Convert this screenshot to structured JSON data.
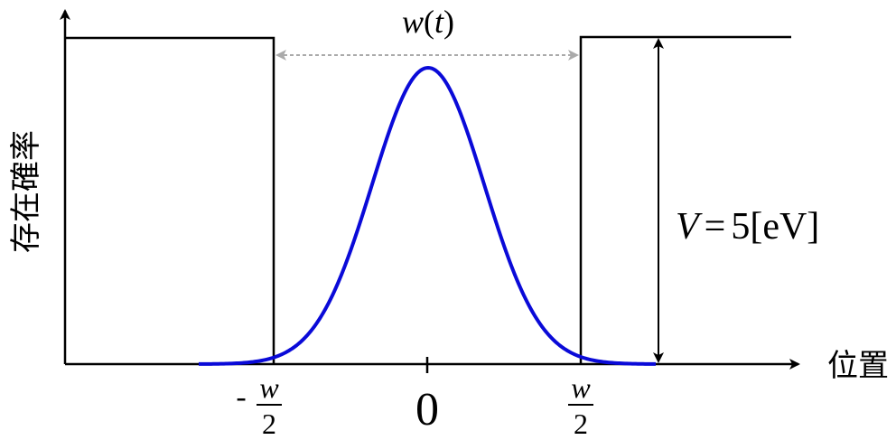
{
  "axes": {
    "y_label": "存在確率",
    "x_label": "位置"
  },
  "width_annotation": {
    "symbol": "w",
    "open_paren": "(",
    "variable": "t",
    "close_paren": ")"
  },
  "potential_annotation": {
    "variable": "V",
    "equals": "=",
    "value": "5",
    "unit": "[eV]"
  },
  "ticks": {
    "left_sign": "-",
    "left_numerator": "w",
    "left_denominator": "2",
    "center": "0",
    "right_numerator": "w",
    "right_denominator": "2"
  },
  "colors": {
    "wave": "#0a0ad8",
    "wall": "#000000",
    "axis": "#000000",
    "width_arrow": "#aaaaaa"
  }
}
